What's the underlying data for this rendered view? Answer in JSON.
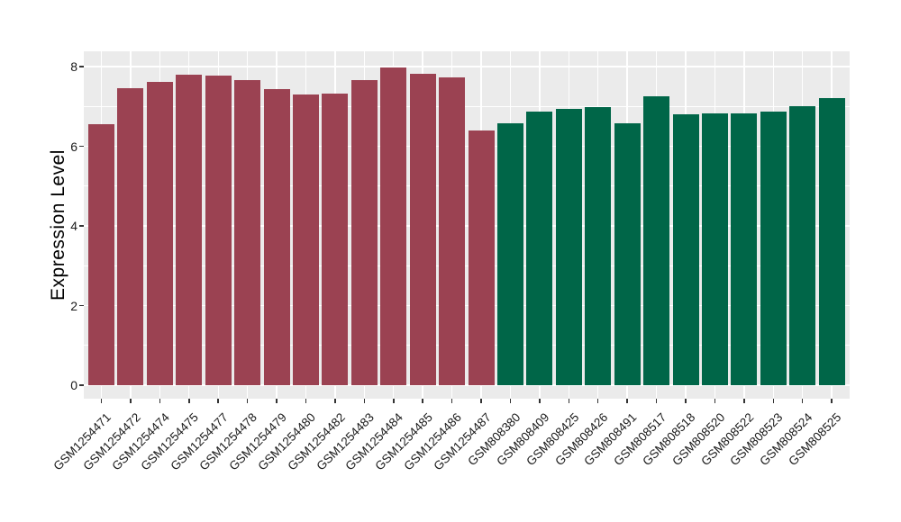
{
  "chart_data": {
    "type": "bar",
    "title": "",
    "xlabel": "",
    "ylabel": "Expression Level",
    "ylim": [
      -0.34,
      8.38
    ],
    "yticks": [
      0,
      2,
      4,
      6,
      8
    ],
    "minor_gridlines": [
      1,
      3,
      5,
      7
    ],
    "grid": "on",
    "legend": "none",
    "panel_background": "#EBEBEB",
    "gridline_color": "#FFFFFF",
    "tick_color": "#333333",
    "text_color": "#1a1a1a",
    "group_colors": {
      "groupA": "#9B4252",
      "groupB": "#006648"
    },
    "bars": [
      {
        "label": "GSM1254471",
        "value": 6.56,
        "group": "groupA"
      },
      {
        "label": "GSM1254472",
        "value": 7.46,
        "group": "groupA"
      },
      {
        "label": "GSM1254474",
        "value": 7.62,
        "group": "groupA"
      },
      {
        "label": "GSM1254475",
        "value": 7.79,
        "group": "groupA"
      },
      {
        "label": "GSM1254477",
        "value": 7.77,
        "group": "groupA"
      },
      {
        "label": "GSM1254478",
        "value": 7.66,
        "group": "groupA"
      },
      {
        "label": "GSM1254479",
        "value": 7.44,
        "group": "groupA"
      },
      {
        "label": "GSM1254480",
        "value": 7.3,
        "group": "groupA"
      },
      {
        "label": "GSM1254482",
        "value": 7.33,
        "group": "groupA"
      },
      {
        "label": "GSM1254483",
        "value": 7.66,
        "group": "groupA"
      },
      {
        "label": "GSM1254484",
        "value": 7.98,
        "group": "groupA"
      },
      {
        "label": "GSM1254485",
        "value": 7.81,
        "group": "groupA"
      },
      {
        "label": "GSM1254486",
        "value": 7.72,
        "group": "groupA"
      },
      {
        "label": "GSM1254487",
        "value": 6.4,
        "group": "groupA"
      },
      {
        "label": "GSM808380",
        "value": 6.57,
        "group": "groupB"
      },
      {
        "label": "GSM808409",
        "value": 6.86,
        "group": "groupB"
      },
      {
        "label": "GSM808425",
        "value": 6.94,
        "group": "groupB"
      },
      {
        "label": "GSM808426",
        "value": 6.99,
        "group": "groupB"
      },
      {
        "label": "GSM808491",
        "value": 6.57,
        "group": "groupB"
      },
      {
        "label": "GSM808517",
        "value": 7.25,
        "group": "groupB"
      },
      {
        "label": "GSM808518",
        "value": 6.81,
        "group": "groupB"
      },
      {
        "label": "GSM808520",
        "value": 6.83,
        "group": "groupB"
      },
      {
        "label": "GSM808522",
        "value": 6.83,
        "group": "groupB"
      },
      {
        "label": "GSM808523",
        "value": 6.86,
        "group": "groupB"
      },
      {
        "label": "GSM808524",
        "value": 7.0,
        "group": "groupB"
      },
      {
        "label": "GSM808525",
        "value": 7.21,
        "group": "groupB"
      }
    ]
  }
}
